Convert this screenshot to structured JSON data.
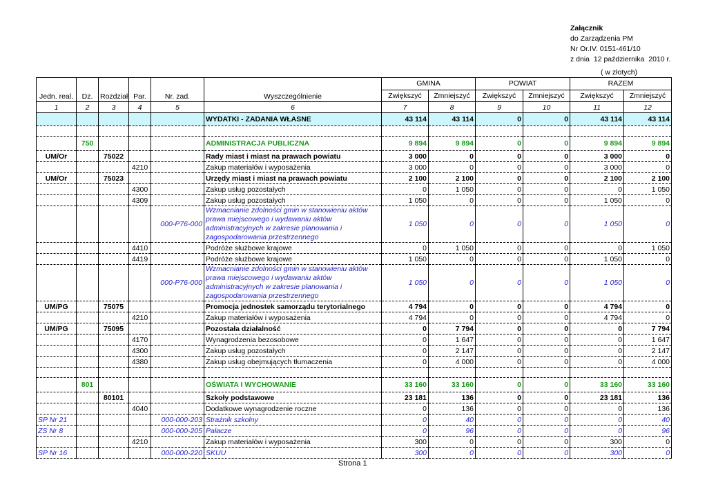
{
  "header": {
    "title": "Załącznik",
    "lines": [
      "do Zarządzenia PM",
      "Nr Or.IV. 0151-461/10",
      "z dnia  12 października  2010 r."
    ],
    "unit": "( w złotych)"
  },
  "table": {
    "groups": [
      "GMINA",
      "POWIAT",
      "RAZEM"
    ],
    "columns": [
      "Jedn. real.",
      "Dz.",
      "Rozdział",
      "Par.",
      "Nr. zad.",
      "Wyszczególnienie",
      "Zwiększyć",
      "Zmniejszyć",
      "Zwiększyć",
      "Zmniejszyć",
      "Zwiększyć",
      "Zmniejszyć"
    ],
    "numbers": [
      "1",
      "2",
      "3",
      "4",
      "5",
      "6",
      "7",
      "8",
      "9",
      "10",
      "11",
      "12"
    ],
    "rows": [
      [
        null,
        null,
        null,
        null,
        null,
        "WYDATKI - ZADANIA WŁASNE",
        "43 114",
        "43 114",
        "0",
        "0",
        "43 114",
        "43 114"
      ],
      [
        null,
        "750",
        null,
        null,
        null,
        "ADMINISTRACJA PUBLICZNA",
        "9 894",
        "9 894",
        "0",
        "0",
        "9 894",
        "9 894"
      ],
      [
        "UM/Or",
        null,
        "75022",
        null,
        null,
        "Rady miast i miast na prawach powiatu",
        "3 000",
        "0",
        "0",
        "0",
        "3 000",
        "0"
      ],
      [
        null,
        null,
        null,
        "4210",
        null,
        "Zakup materiałów i wyposażenia",
        "3 000",
        "0",
        "0",
        "0",
        "3 000",
        "0"
      ],
      [
        "UM/Or",
        null,
        "75023",
        null,
        null,
        "Urzędy miast i miast na prawach powiatu",
        "2 100",
        "2 100",
        "0",
        "0",
        "2 100",
        "2 100"
      ],
      [
        null,
        null,
        null,
        "4300",
        null,
        "Zakup usług pozostałych",
        "0",
        "1 050",
        "0",
        "0",
        "0",
        "1 050"
      ],
      [
        null,
        null,
        null,
        "4309",
        null,
        "Zakup usług pozostałych",
        "1 050",
        "0",
        "0",
        "0",
        "1 050",
        "0"
      ],
      [
        null,
        null,
        null,
        null,
        "000-P76-000",
        "Wzmacnianie zdolności gmin w stanowieniu aktów prawa miejscowego i wydawaniu aktów administracyjnych w zakresie planowania i zagospodarowania przestrzennego",
        "1 050",
        "0",
        "0",
        "0",
        "1 050",
        "0"
      ],
      [
        null,
        null,
        null,
        "4410",
        null,
        "Podróże służbowe krajowe",
        "0",
        "1 050",
        "0",
        "0",
        "0",
        "1 050"
      ],
      [
        null,
        null,
        null,
        "4419",
        null,
        "Podróże służbowe krajowe",
        "1 050",
        "0",
        "0",
        "0",
        "1 050",
        "0"
      ],
      [
        null,
        null,
        null,
        null,
        "000-P76-000",
        "Wzmacnianie zdolności gmin w stanowieniu aktów prawa miejscowego i wydawaniu aktów administracyjnych w zakresie planowania i zagospodarowania przestrzennego",
        "1 050",
        "0",
        "0",
        "0",
        "1 050",
        "0"
      ],
      [
        "UM/PG",
        null,
        "75075",
        null,
        null,
        "Promocja jednostek samorządu terytorialnego",
        "4 794",
        "0",
        "0",
        "0",
        "4 794",
        "0"
      ],
      [
        null,
        null,
        null,
        "4210",
        null,
        "Zakup materiałów i wyposażenia",
        "4 794",
        "0",
        "0",
        "0",
        "4 794",
        "0"
      ],
      [
        "UM/PG",
        null,
        "75095",
        null,
        null,
        "Pozostała działalność",
        "0",
        "7 794",
        "0",
        "0",
        "0",
        "7 794"
      ],
      [
        null,
        null,
        null,
        "4170",
        null,
        "Wynagrodzenia bezosobowe",
        "0",
        "1 647",
        "0",
        "0",
        "0",
        "1 647"
      ],
      [
        null,
        null,
        null,
        "4300",
        null,
        "Zakup usług pozostałych",
        "0",
        "2 147",
        "0",
        "0",
        "0",
        "2 147"
      ],
      [
        null,
        null,
        null,
        "4380",
        null,
        "Zakup usług obejmujących tłumaczenia",
        "0",
        "4 000",
        "0",
        "0",
        "0",
        "4 000"
      ],
      [
        null,
        "801",
        null,
        null,
        null,
        "OŚWIATA I WYCHOWANIE",
        "33 160",
        "33 160",
        "0",
        "0",
        "33 160",
        "33 160"
      ],
      [
        null,
        null,
        "80101",
        null,
        null,
        "Szkoły podstawowe",
        "23 181",
        "136",
        "0",
        "0",
        "23 181",
        "136"
      ],
      [
        null,
        null,
        null,
        "4040",
        null,
        "Dodatkowe wynagrodzenie roczne",
        "0",
        "136",
        "0",
        "0",
        "0",
        "136"
      ],
      [
        "SP Nr 21",
        null,
        null,
        null,
        "000-000-203",
        "Strażnik szkolny",
        "0",
        "40",
        "0",
        "0",
        "0",
        "40"
      ],
      [
        "ZS Nr 8",
        null,
        null,
        null,
        "000-000-205",
        "Pałacze",
        "0",
        "96",
        "0",
        "0",
        "0",
        "96"
      ],
      [
        null,
        null,
        null,
        "4210",
        null,
        "Zakup materiałów i wyposażenia",
        "300",
        "0",
        "0",
        "0",
        "300",
        "0"
      ],
      [
        "SP Nr 16",
        null,
        null,
        null,
        "000-000-220",
        "SKUU",
        "300",
        "0",
        "0",
        "0",
        "300",
        "0"
      ]
    ]
  },
  "footer": {
    "page": "Strona 1"
  }
}
